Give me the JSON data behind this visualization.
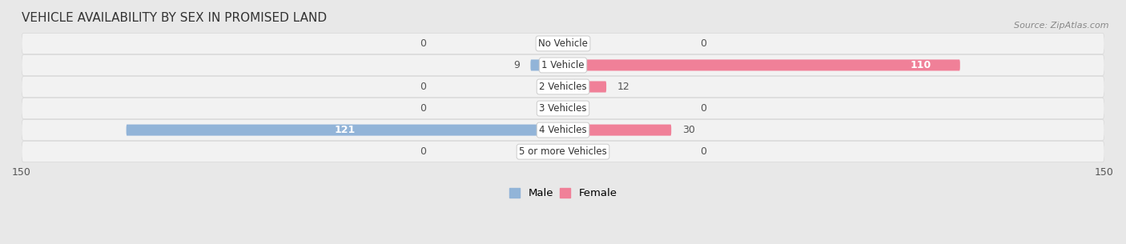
{
  "title": "VEHICLE AVAILABILITY BY SEX IN PROMISED LAND",
  "source": "Source: ZipAtlas.com",
  "categories": [
    "No Vehicle",
    "1 Vehicle",
    "2 Vehicles",
    "3 Vehicles",
    "4 Vehicles",
    "5 or more Vehicles"
  ],
  "male_values": [
    0,
    9,
    0,
    0,
    121,
    0
  ],
  "female_values": [
    0,
    110,
    12,
    0,
    30,
    0
  ],
  "male_color": "#92b4d8",
  "female_color": "#f08098",
  "male_label": "Male",
  "female_label": "Female",
  "xlim": 150,
  "bar_height": 0.52,
  "bg_color": "#e8e8e8",
  "row_bg_light": "#f5f5f5",
  "row_bg_dark": "#e4e4e4",
  "title_fontsize": 11,
  "axis_fontsize": 9,
  "value_fontsize": 9,
  "category_fontsize": 8.5
}
